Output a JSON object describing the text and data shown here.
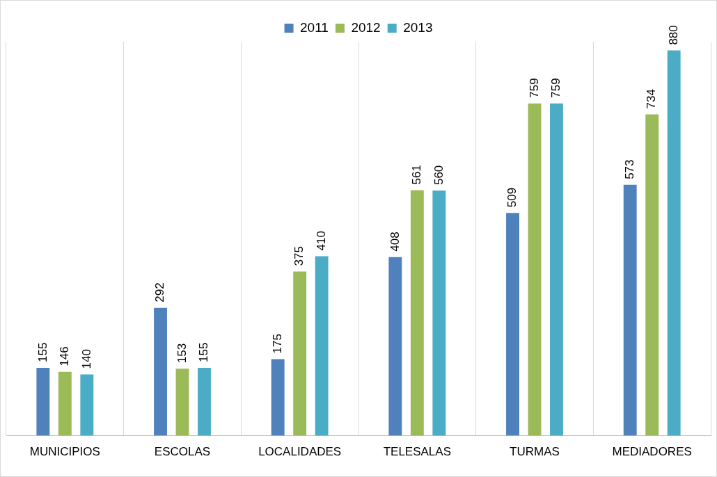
{
  "chart_data": {
    "type": "bar",
    "categories": [
      "MUNICIPIOS",
      "ESCOLAS",
      "LOCALIDADES",
      "TELESALAS",
      "TURMAS",
      "MEDIADORES"
    ],
    "series": [
      {
        "name": "2011",
        "color": "#4f81bd",
        "values": [
          155,
          292,
          175,
          408,
          509,
          573
        ]
      },
      {
        "name": "2012",
        "color": "#9bbb59",
        "values": [
          146,
          153,
          375,
          561,
          759,
          734
        ]
      },
      {
        "name": "2013",
        "color": "#4bacc6",
        "values": [
          140,
          155,
          410,
          560,
          759,
          880
        ]
      }
    ],
    "data_labels": true,
    "grid": "x",
    "legend": "top",
    "tick_labels": "x"
  }
}
